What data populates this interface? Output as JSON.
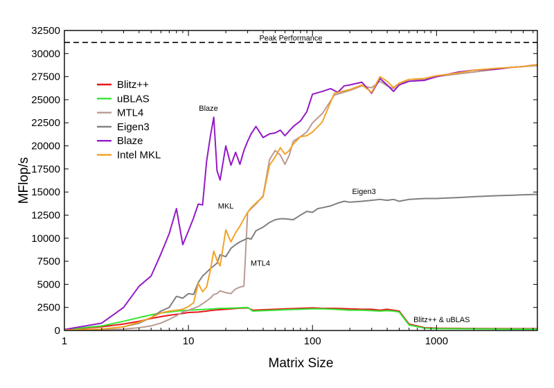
{
  "chart_data": {
    "type": "line",
    "xlabel": "Matrix Size",
    "ylabel": "MFlop/s",
    "xscale": "log",
    "xlim": [
      1,
      6500
    ],
    "ylim": [
      0,
      32500
    ],
    "x_ticks": [
      "1",
      "10",
      "100",
      "1000"
    ],
    "y_ticks": [
      "0",
      "2500",
      "5000",
      "7500",
      "10000",
      "12500",
      "15000",
      "17500",
      "20000",
      "22500",
      "25000",
      "27500",
      "30000",
      "32500"
    ],
    "legend_position": "top-left",
    "peak": {
      "label": "Peak Performance",
      "value": 31200
    },
    "annotations": [
      {
        "text": "Blaze",
        "x": 14.5,
        "y": 23800
      },
      {
        "text": "MKL",
        "x": 20,
        "y": 13200
      },
      {
        "text": "MTL4",
        "x": 38,
        "y": 7000
      },
      {
        "text": "Eigen3",
        "x": 260,
        "y": 14800
      },
      {
        "text": "Blitz++ & uBLAS",
        "x": 1100,
        "y": 900
      }
    ],
    "series": [
      {
        "name": "Blitz++",
        "color": "#e8161b",
        "x": [
          1,
          2,
          3,
          4,
          5,
          6,
          7,
          8,
          9,
          10,
          12,
          14,
          16,
          18,
          20,
          25,
          30,
          33,
          40,
          50,
          60,
          80,
          100,
          120,
          150,
          200,
          250,
          300,
          350,
          400,
          450,
          500,
          600,
          800,
          1000,
          2000,
          4000,
          6500
        ],
        "y": [
          100,
          400,
          700,
          1000,
          1300,
          1500,
          1650,
          1750,
          1850,
          1950,
          2000,
          2100,
          2200,
          2250,
          2300,
          2400,
          2450,
          2200,
          2250,
          2300,
          2350,
          2400,
          2450,
          2400,
          2400,
          2350,
          2300,
          2300,
          2200,
          2300,
          2200,
          2100,
          700,
          300,
          250,
          220,
          200,
          200
        ]
      },
      {
        "name": "uBLAS",
        "color": "#33e633",
        "x": [
          1,
          2,
          3,
          4,
          5,
          6,
          7,
          8,
          9,
          10,
          12,
          14,
          16,
          18,
          20,
          25,
          30,
          33,
          40,
          50,
          60,
          80,
          100,
          120,
          150,
          200,
          250,
          300,
          350,
          400,
          450,
          500,
          600,
          800,
          1000,
          2000,
          4000,
          6500
        ],
        "y": [
          100,
          500,
          1000,
          1400,
          1700,
          1900,
          2000,
          2100,
          2150,
          2200,
          2250,
          2300,
          2350,
          2400,
          2400,
          2450,
          2500,
          2100,
          2150,
          2200,
          2250,
          2300,
          2350,
          2350,
          2300,
          2200,
          2200,
          2150,
          2100,
          2150,
          2100,
          2000,
          600,
          250,
          200,
          180,
          150,
          150
        ]
      },
      {
        "name": "MTL4",
        "color": "#b89a93",
        "x": [
          1,
          2,
          3,
          4,
          5,
          6,
          7,
          8,
          9,
          10,
          11,
          12,
          13,
          14,
          15,
          16,
          17,
          18,
          20,
          22,
          24,
          26,
          28,
          30,
          32,
          35,
          40,
          45,
          50,
          55,
          60,
          65,
          70,
          80,
          90,
          100,
          120,
          150,
          200,
          250,
          300,
          350,
          400,
          450,
          500,
          600,
          800,
          1000,
          1500,
          2000,
          3000,
          4000,
          5000,
          6500
        ],
        "y": [
          50,
          100,
          150,
          300,
          500,
          800,
          1200,
          1600,
          2000,
          2200,
          2400,
          2600,
          2900,
          3200,
          3500,
          3900,
          4000,
          4300,
          4100,
          4000,
          4500,
          4700,
          4800,
          12800,
          13200,
          13700,
          14600,
          18500,
          19500,
          19000,
          18000,
          19000,
          20500,
          21000,
          21500,
          22500,
          23500,
          25500,
          26000,
          26500,
          26300,
          27000,
          26500,
          26200,
          26800,
          27000,
          27200,
          27500,
          27800,
          28000,
          28300,
          28500,
          28600,
          28700
        ]
      },
      {
        "name": "Eigen3",
        "color": "#7f7f7f",
        "x": [
          1,
          2,
          3,
          4,
          5,
          6,
          7,
          8,
          9,
          10,
          11,
          12,
          13,
          14,
          15,
          16,
          17,
          18,
          20,
          22,
          24,
          26,
          28,
          30,
          32,
          35,
          40,
          45,
          50,
          55,
          60,
          70,
          80,
          90,
          100,
          110,
          120,
          140,
          160,
          180,
          200,
          250,
          300,
          350,
          400,
          450,
          500,
          600,
          800,
          1000,
          1500,
          2000,
          3000,
          4000,
          5000,
          6500
        ],
        "y": [
          50,
          150,
          400,
          800,
          1400,
          2100,
          2500,
          3700,
          3500,
          4000,
          3900,
          5200,
          5900,
          6300,
          6700,
          7000,
          7300,
          8200,
          8000,
          8900,
          9300,
          9600,
          9800,
          10000,
          9900,
          10800,
          11200,
          11700,
          12000,
          12100,
          12100,
          12000,
          12500,
          12900,
          12800,
          13200,
          13300,
          13500,
          13800,
          14000,
          13900,
          14000,
          14100,
          14200,
          14100,
          14200,
          14000,
          14200,
          14300,
          14300,
          14400,
          14500,
          14600,
          14650,
          14700,
          14750
        ]
      },
      {
        "name": "Blaze",
        "color": "#9318c7",
        "x": [
          1,
          2,
          3,
          4,
          5,
          6,
          7,
          8,
          9,
          10,
          11,
          12,
          13,
          14,
          15,
          16,
          17,
          18,
          20,
          22,
          24,
          26,
          28,
          30,
          32,
          35,
          40,
          45,
          50,
          55,
          60,
          70,
          80,
          90,
          100,
          120,
          140,
          160,
          180,
          200,
          250,
          300,
          350,
          400,
          450,
          500,
          600,
          800,
          1000,
          1500,
          2000,
          3000,
          4000,
          5000,
          6500
        ],
        "y": [
          100,
          800,
          2500,
          4800,
          5900,
          8300,
          10500,
          13200,
          9300,
          10800,
          12200,
          13700,
          13600,
          18300,
          21000,
          23100,
          17300,
          16300,
          20000,
          17900,
          19300,
          18000,
          19500,
          20500,
          21300,
          22100,
          20900,
          21300,
          21400,
          21700,
          21100,
          22100,
          22700,
          23700,
          25600,
          25900,
          26200,
          25800,
          26500,
          26600,
          26900,
          25700,
          27300,
          26600,
          25900,
          26600,
          27000,
          27100,
          27500,
          28000,
          28200,
          28300,
          28500,
          28600,
          28800
        ]
      },
      {
        "name": "Intel MKL",
        "color": "#f2a227",
        "x": [
          1,
          2,
          3,
          4,
          5,
          6,
          7,
          8,
          9,
          10,
          11,
          12,
          13,
          14,
          15,
          16,
          17,
          18,
          20,
          22,
          24,
          26,
          28,
          30,
          32,
          35,
          40,
          45,
          50,
          55,
          60,
          65,
          70,
          80,
          90,
          100,
          120,
          150,
          200,
          250,
          300,
          350,
          400,
          450,
          500,
          600,
          800,
          1000,
          1500,
          2000,
          3000,
          4000,
          5000,
          6500
        ],
        "y": [
          50,
          150,
          400,
          900,
          1400,
          1900,
          2100,
          2200,
          2300,
          2600,
          3000,
          5100,
          4200,
          4700,
          6500,
          8600,
          7600,
          7000,
          10900,
          9600,
          10600,
          11300,
          12100,
          12800,
          13300,
          13800,
          14500,
          17900,
          18800,
          19800,
          19100,
          19500,
          20200,
          21000,
          21100,
          21500,
          22600,
          25700,
          26100,
          26600,
          25800,
          27500,
          27000,
          26300,
          26800,
          27200,
          27300,
          27600,
          27900,
          28200,
          28400,
          28500,
          28600,
          28800
        ]
      }
    ]
  }
}
